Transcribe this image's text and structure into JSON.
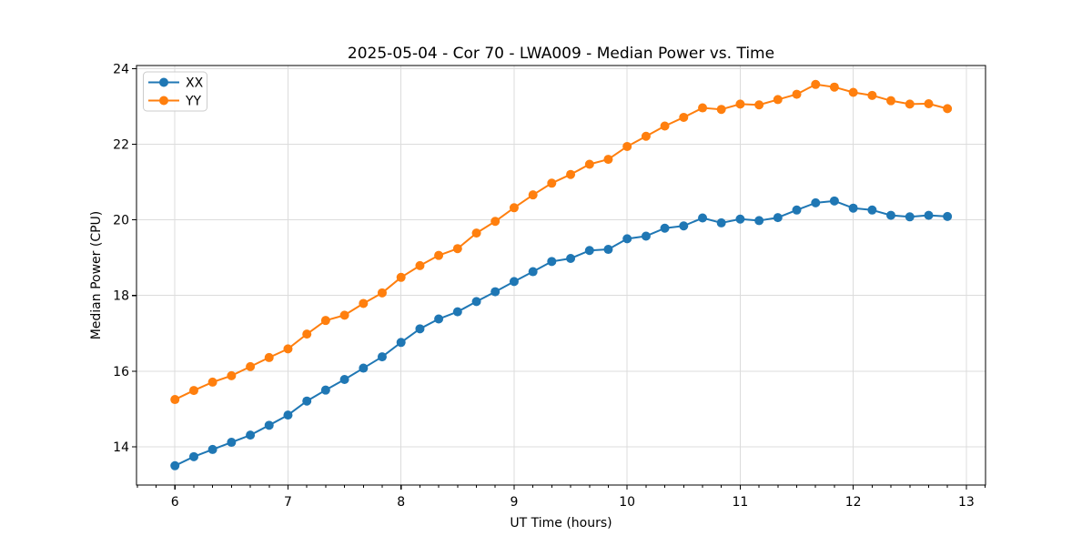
{
  "chart_data": {
    "type": "line",
    "title": "2025-05-04 - Cor 70 - LWA009 - Median Power vs. Time",
    "xlabel": "UT Time (hours)",
    "ylabel": "Median Power (CPU)",
    "xlim": [
      5.66,
      13.17
    ],
    "ylim": [
      12.99,
      24.08
    ],
    "x_major_ticks": [
      6,
      7,
      8,
      9,
      10,
      11,
      12,
      13
    ],
    "y_major_ticks": [
      14,
      16,
      18,
      20,
      22,
      24
    ],
    "x_minor_divisions_per_hour": 6,
    "grid": true,
    "legend_position": "upper left",
    "marker": "circle",
    "x": [
      6.0,
      6.167,
      6.333,
      6.5,
      6.667,
      6.833,
      7.0,
      7.167,
      7.333,
      7.5,
      7.667,
      7.833,
      8.0,
      8.167,
      8.333,
      8.5,
      8.667,
      8.833,
      9.0,
      9.167,
      9.333,
      9.5,
      9.667,
      9.833,
      10.0,
      10.167,
      10.333,
      10.5,
      10.667,
      10.833,
      11.0,
      11.167,
      11.333,
      11.5,
      11.667,
      11.833,
      12.0,
      12.167,
      12.333,
      12.5,
      12.667,
      12.833
    ],
    "series": [
      {
        "name": "XX",
        "color": "#1f77b4",
        "values": [
          13.5,
          13.74,
          13.93,
          14.12,
          14.31,
          14.57,
          14.84,
          15.21,
          15.5,
          15.78,
          16.08,
          16.38,
          16.76,
          17.12,
          17.38,
          17.57,
          17.84,
          18.1,
          18.37,
          18.63,
          18.9,
          18.98,
          19.19,
          19.22,
          19.5,
          19.57,
          19.78,
          19.84,
          20.05,
          19.92,
          20.02,
          19.98,
          20.06,
          20.26,
          20.45,
          20.5,
          20.31,
          20.26,
          20.12,
          20.08,
          20.12,
          20.09
        ]
      },
      {
        "name": "YY",
        "color": "#ff7f0e",
        "values": [
          15.25,
          15.49,
          15.71,
          15.88,
          16.12,
          16.36,
          16.59,
          16.98,
          17.34,
          17.48,
          17.79,
          18.07,
          18.48,
          18.79,
          19.06,
          19.24,
          19.65,
          19.96,
          20.32,
          20.66,
          20.97,
          21.2,
          21.47,
          21.6,
          21.94,
          22.21,
          22.48,
          22.71,
          22.96,
          22.92,
          23.06,
          23.04,
          23.18,
          23.32,
          23.58,
          23.51,
          23.37,
          23.29,
          23.15,
          23.06,
          23.07,
          22.94
        ]
      }
    ]
  },
  "colors": {
    "grid": "#dcdcdc",
    "axis": "#000000",
    "legend_border": "#cccccc",
    "series_xx": "#1f77b4",
    "series_yy": "#ff7f0e"
  }
}
